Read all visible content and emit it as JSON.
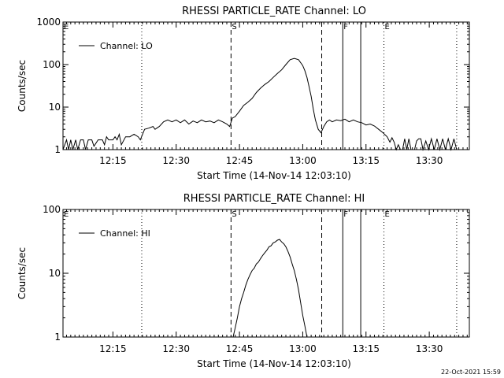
{
  "footer_timestamp": "22-Oct-2021 15:59",
  "colors": {
    "foreground": "#000000",
    "background": "#ffffff"
  },
  "chart_data": [
    {
      "type": "line",
      "title": "RHESSI PARTICLE_RATE Channel: LO",
      "xlabel": "Start Time (14-Nov-14 12:03:10)",
      "ylabel": "Counts/sec",
      "y_scale": "log",
      "ylim": [
        1,
        1000
      ],
      "yticks": [
        1,
        10,
        100,
        1000
      ],
      "ytick_labels": [
        "1",
        "10",
        "100",
        "1000"
      ],
      "xlim": [
        "12:03:10",
        "13:39:30"
      ],
      "xticks": [
        "12:15",
        "12:30",
        "12:45",
        "13:00",
        "13:15",
        "13:30"
      ],
      "legend": {
        "location": "top-left",
        "label": "Channel: LO"
      },
      "markers": [
        {
          "time": "12:43:00",
          "label": "S",
          "style": "dashed"
        },
        {
          "time": "13:04:30",
          "label": "",
          "style": "dashed"
        },
        {
          "time": "13:09:30",
          "label": "F",
          "style": "solid"
        },
        {
          "time": "13:13:45",
          "label": "",
          "style": "solid"
        },
        {
          "time": "13:19:15",
          "label": "E",
          "style": "dotted"
        },
        {
          "time": "12:21:50",
          "label": "",
          "style": "dotted"
        },
        {
          "time": "13:36:30",
          "label": "",
          "style": "dotted"
        },
        {
          "time": "12:03:10",
          "label": "E",
          "style": "none"
        }
      ],
      "series": [
        {
          "name": "Channel: LO",
          "points": [
            [
              "12:03:10",
              1
            ],
            [
              "12:04:00",
              1.7
            ],
            [
              "12:04:30",
              1
            ],
            [
              "12:05:00",
              1.7
            ],
            [
              "12:05:30",
              1
            ],
            [
              "12:06:10",
              1.7
            ],
            [
              "12:06:40",
              1
            ],
            [
              "12:07:20",
              1.7
            ],
            [
              "12:08:00",
              1.7
            ],
            [
              "12:08:30",
              1
            ],
            [
              "12:09:10",
              1.7
            ],
            [
              "12:10:00",
              1.7
            ],
            [
              "12:10:30",
              1.2
            ],
            [
              "12:11:30",
              1.7
            ],
            [
              "12:12:30",
              1.7
            ],
            [
              "12:13:00",
              1.3
            ],
            [
              "12:13:30",
              2.0
            ],
            [
              "12:14:00",
              1.7
            ],
            [
              "12:15:00",
              1.7
            ],
            [
              "12:15:30",
              2.0
            ],
            [
              "12:16:00",
              1.7
            ],
            [
              "12:16:30",
              2.3
            ],
            [
              "12:17:00",
              1.3
            ],
            [
              "12:18:00",
              2.0
            ],
            [
              "12:19:00",
              2.0
            ],
            [
              "12:20:00",
              2.3
            ],
            [
              "12:21:00",
              2.0
            ],
            [
              "12:21:30",
              1.7
            ],
            [
              "12:22:30",
              3.0
            ],
            [
              "12:23:30",
              3.2
            ],
            [
              "12:24:30",
              3.5
            ],
            [
              "12:25:00",
              3.0
            ],
            [
              "12:26:00",
              3.5
            ],
            [
              "12:27:00",
              4.5
            ],
            [
              "12:28:00",
              5.0
            ],
            [
              "12:29:00",
              4.5
            ],
            [
              "12:30:00",
              5.0
            ],
            [
              "12:31:00",
              4.3
            ],
            [
              "12:32:00",
              5.0
            ],
            [
              "12:33:00",
              4.0
            ],
            [
              "12:34:00",
              4.7
            ],
            [
              "12:35:00",
              4.3
            ],
            [
              "12:36:00",
              5.0
            ],
            [
              "12:37:00",
              4.5
            ],
            [
              "12:38:00",
              4.7
            ],
            [
              "12:39:00",
              4.3
            ],
            [
              "12:40:00",
              5.0
            ],
            [
              "12:41:00",
              4.5
            ],
            [
              "12:42:00",
              4.0
            ],
            [
              "12:42:40",
              3.5
            ],
            [
              "12:43:20",
              5.5
            ],
            [
              "12:44:00",
              6.0
            ],
            [
              "12:45:00",
              8.0
            ],
            [
              "12:46:00",
              11
            ],
            [
              "12:47:00",
              13
            ],
            [
              "12:48:00",
              16
            ],
            [
              "12:49:00",
              22
            ],
            [
              "12:50:00",
              28
            ],
            [
              "12:51:00",
              34
            ],
            [
              "12:52:00",
              40
            ],
            [
              "12:53:00",
              50
            ],
            [
              "12:54:00",
              62
            ],
            [
              "12:55:00",
              75
            ],
            [
              "12:56:00",
              100
            ],
            [
              "12:57:00",
              130
            ],
            [
              "12:58:00",
              140
            ],
            [
              "12:59:00",
              130
            ],
            [
              "13:00:00",
              95
            ],
            [
              "13:00:30",
              72
            ],
            [
              "13:01:00",
              50
            ],
            [
              "13:01:30",
              30
            ],
            [
              "13:02:00",
              18
            ],
            [
              "13:02:30",
              9
            ],
            [
              "13:03:00",
              5
            ],
            [
              "13:03:40",
              3.0
            ],
            [
              "13:04:20",
              2.5
            ],
            [
              "13:05:00",
              3.5
            ],
            [
              "13:05:40",
              4.5
            ],
            [
              "13:06:20",
              5.0
            ],
            [
              "13:07:00",
              4.5
            ],
            [
              "13:08:00",
              5.0
            ],
            [
              "13:09:00",
              4.8
            ],
            [
              "13:10:00",
              5.2
            ],
            [
              "13:11:00",
              4.5
            ],
            [
              "13:12:00",
              5.0
            ],
            [
              "13:13:00",
              4.5
            ],
            [
              "13:14:00",
              4.3
            ],
            [
              "13:15:00",
              3.8
            ],
            [
              "13:16:00",
              4.0
            ],
            [
              "13:17:00",
              3.6
            ],
            [
              "13:18:00",
              3.0
            ],
            [
              "13:19:00",
              2.5
            ],
            [
              "13:20:00",
              2.0
            ],
            [
              "13:20:40",
              1.5
            ],
            [
              "13:21:10",
              1.9
            ],
            [
              "13:21:40",
              1.5
            ],
            [
              "13:22:10",
              1
            ],
            [
              "13:22:40",
              1.3
            ],
            [
              "13:23:10",
              1
            ],
            [
              "13:23:40",
              1
            ],
            [
              "13:24:10",
              1.8
            ],
            [
              "13:24:40",
              1.0
            ],
            [
              "13:25:10",
              1.8
            ],
            [
              "13:25:40",
              1.0
            ],
            [
              "13:26:30",
              1.0
            ],
            [
              "13:27:00",
              1.6
            ],
            [
              "13:27:30",
              1.8
            ],
            [
              "13:28:00",
              1.8
            ],
            [
              "13:28:30",
              1.0
            ],
            [
              "13:29:10",
              1.6
            ],
            [
              "13:29:50",
              1.0
            ],
            [
              "13:30:30",
              1.8
            ],
            [
              "13:31:10",
              1.0
            ],
            [
              "13:31:50",
              1.8
            ],
            [
              "13:32:30",
              1.0
            ],
            [
              "13:33:10",
              1.8
            ],
            [
              "13:33:50",
              1.0
            ],
            [
              "13:34:30",
              1.8
            ],
            [
              "13:35:10",
              1.0
            ],
            [
              "13:35:50",
              1.8
            ],
            [
              "13:36:30",
              1.0
            ]
          ]
        }
      ]
    },
    {
      "type": "line",
      "title": "RHESSI PARTICLE_RATE Channel: HI",
      "xlabel": "Start Time (14-Nov-14 12:03:10)",
      "ylabel": "Counts/sec",
      "y_scale": "log",
      "ylim": [
        1,
        100
      ],
      "yticks": [
        1,
        10,
        100
      ],
      "ytick_labels": [
        "1",
        "10",
        "100"
      ],
      "xlim": [
        "12:03:10",
        "13:39:30"
      ],
      "xticks": [
        "12:15",
        "12:30",
        "12:45",
        "13:00",
        "13:15",
        "13:30"
      ],
      "legend": {
        "location": "top-left",
        "label": "Channel: HI"
      },
      "markers": [
        {
          "time": "12:43:00",
          "label": "S",
          "style": "dashed"
        },
        {
          "time": "13:04:30",
          "label": "",
          "style": "dashed"
        },
        {
          "time": "13:09:30",
          "label": "F",
          "style": "solid"
        },
        {
          "time": "13:13:45",
          "label": "",
          "style": "solid"
        },
        {
          "time": "13:19:15",
          "label": "E",
          "style": "dotted"
        },
        {
          "time": "12:21:50",
          "label": "",
          "style": "dotted"
        },
        {
          "time": "13:36:30",
          "label": "",
          "style": "dotted"
        },
        {
          "time": "12:03:10",
          "label": "E",
          "style": "none"
        }
      ],
      "series": [
        {
          "name": "Channel: HI",
          "points": [
            [
              "12:43:30",
              1
            ],
            [
              "12:44:00",
              1.4
            ],
            [
              "12:44:30",
              2.0
            ],
            [
              "12:45:00",
              3.0
            ],
            [
              "12:45:30",
              4.0
            ],
            [
              "12:46:00",
              5.0
            ],
            [
              "12:46:30",
              6.5
            ],
            [
              "12:47:00",
              8.0
            ],
            [
              "12:47:30",
              9.5
            ],
            [
              "12:48:00",
              11
            ],
            [
              "12:48:30",
              12
            ],
            [
              "12:49:00",
              14
            ],
            [
              "12:49:30",
              15
            ],
            [
              "12:50:00",
              17
            ],
            [
              "12:50:30",
              19
            ],
            [
              "12:51:00",
              21
            ],
            [
              "12:51:30",
              23
            ],
            [
              "12:52:00",
              26
            ],
            [
              "12:52:30",
              27
            ],
            [
              "12:53:00",
              30
            ],
            [
              "12:53:30",
              31
            ],
            [
              "12:54:00",
              33
            ],
            [
              "12:54:30",
              34
            ],
            [
              "12:55:00",
              31
            ],
            [
              "12:55:30",
              29
            ],
            [
              "12:56:00",
              26
            ],
            [
              "12:56:30",
              22
            ],
            [
              "12:57:00",
              18
            ],
            [
              "12:57:30",
              14
            ],
            [
              "12:58:00",
              11
            ],
            [
              "12:58:30",
              8
            ],
            [
              "12:59:00",
              5.5
            ],
            [
              "12:59:30",
              3.5
            ],
            [
              "13:00:00",
              2.2
            ],
            [
              "13:00:30",
              1.5
            ],
            [
              "13:01:00",
              1
            ]
          ]
        }
      ]
    }
  ]
}
